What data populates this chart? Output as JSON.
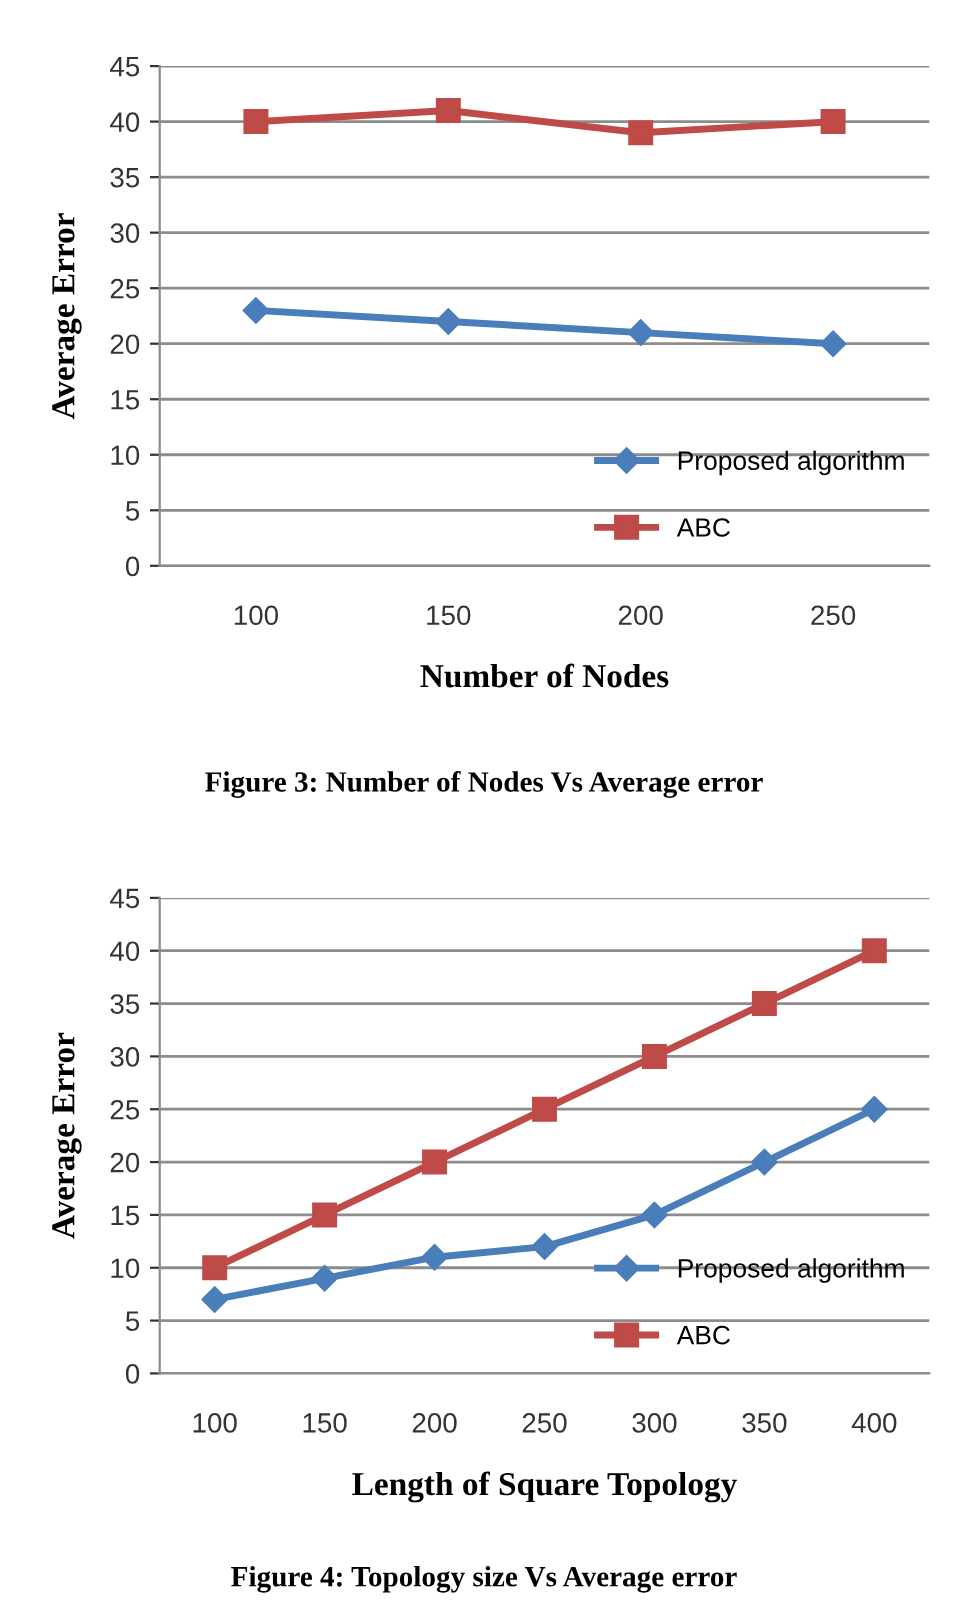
{
  "chart_data": [
    {
      "type": "line",
      "xlabel": "Number of Nodes",
      "ylabel": "Average Error",
      "categories": [
        "100",
        "150",
        "200",
        "250"
      ],
      "ylim": [
        0,
        45
      ],
      "yticks": [
        0,
        5,
        10,
        15,
        20,
        25,
        30,
        35,
        40,
        45
      ],
      "grid": "y",
      "legend": "bottom right",
      "line_style": "solid",
      "series": [
        {
          "name": "Proposed algorithm",
          "color": "#4a7ebb",
          "marker": "diamond",
          "values": [
            23,
            22,
            21,
            20
          ]
        },
        {
          "name": "ABC",
          "color": "#be4b48",
          "marker": "square",
          "values": [
            40,
            41,
            39,
            40
          ]
        }
      ],
      "annotations": [
        "Figure 3: Number of Nodes Vs Average error"
      ]
    },
    {
      "type": "line",
      "xlabel": "Length of Square Topology",
      "ylabel": "Average Error",
      "categories": [
        "100",
        "150",
        "200",
        "250",
        "300",
        "350",
        "400"
      ],
      "ylim": [
        0,
        45
      ],
      "yticks": [
        0,
        5,
        10,
        15,
        20,
        25,
        30,
        35,
        40,
        45
      ],
      "grid": "y",
      "legend": "bottom right",
      "line_style": "solid",
      "series": [
        {
          "name": "Proposed algorithm",
          "color": "#4a7ebb",
          "marker": "diamond",
          "values": [
            7,
            9,
            11,
            12,
            15,
            20,
            25
          ]
        },
        {
          "name": "ABC",
          "color": "#be4b48",
          "marker": "square",
          "values": [
            10,
            15,
            20,
            25,
            30,
            35,
            40
          ]
        }
      ],
      "annotations": [
        "Figure 4: Topology size Vs Average error"
      ]
    }
  ]
}
